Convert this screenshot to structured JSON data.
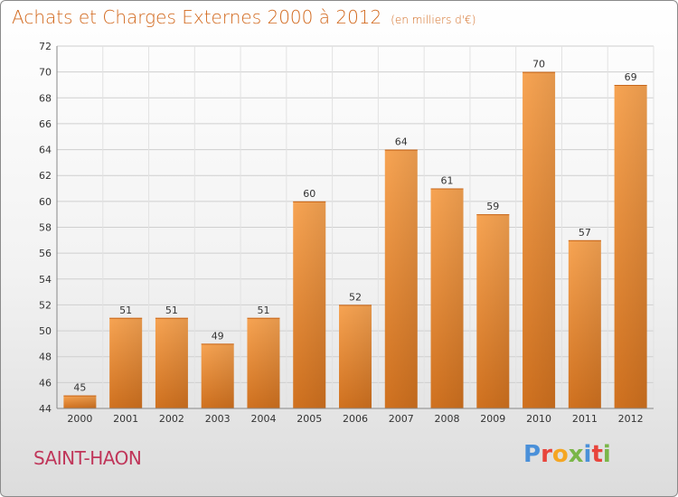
{
  "header": {
    "title": "Achats et Charges Externes 2000 à 2012",
    "unit": "(en milliers d'€)"
  },
  "footer": {
    "place": "SAINT-HAON",
    "brand": "Proxiti",
    "brand_colors": [
      "#4a90d9",
      "#e8453c",
      "#f5a623",
      "#7ab648",
      "#4a90d9",
      "#e8453c",
      "#7ab648"
    ]
  },
  "chart_data": {
    "type": "bar",
    "title": "Achats et Charges Externes 2000 à 2012",
    "subtitle": "(en milliers d'€)",
    "xlabel": "",
    "ylabel": "",
    "categories": [
      "2000",
      "2001",
      "2002",
      "2003",
      "2004",
      "2005",
      "2006",
      "2007",
      "2008",
      "2009",
      "2010",
      "2011",
      "2012"
    ],
    "values": [
      45,
      51,
      51,
      49,
      51,
      60,
      52,
      64,
      61,
      59,
      70,
      57,
      69
    ],
    "ylim": [
      44,
      72
    ],
    "yticks": [
      44,
      46,
      48,
      50,
      52,
      54,
      56,
      58,
      60,
      62,
      64,
      66,
      68,
      70,
      72
    ],
    "grid": true,
    "bar_color": "#f0922f",
    "legend": "none"
  }
}
